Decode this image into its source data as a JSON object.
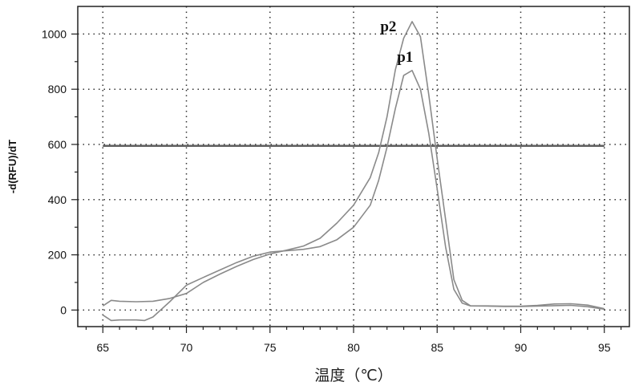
{
  "chart_data": {
    "type": "line",
    "xlabel": "温度（℃）",
    "ylabel": "-d(RFU)/dT",
    "xlim": [
      63.5,
      96.5
    ],
    "ylim": [
      -60,
      1100
    ],
    "xticks": [
      65,
      70,
      75,
      80,
      85,
      90,
      95
    ],
    "yticks": [
      0,
      200,
      400,
      600,
      800,
      1000
    ],
    "grid": true,
    "threshold": 595,
    "series": [
      {
        "name": "p2",
        "color": "#8a8a8a",
        "points": [
          [
            65,
            15
          ],
          [
            65.5,
            35
          ],
          [
            66,
            32
          ],
          [
            67,
            30
          ],
          [
            68,
            32
          ],
          [
            69,
            42
          ],
          [
            70,
            60
          ],
          [
            71,
            100
          ],
          [
            72,
            130
          ],
          [
            73,
            158
          ],
          [
            74,
            183
          ],
          [
            75,
            203
          ],
          [
            76,
            217
          ],
          [
            77,
            232
          ],
          [
            78,
            260
          ],
          [
            79,
            315
          ],
          [
            80,
            380
          ],
          [
            81,
            480
          ],
          [
            81.5,
            570
          ],
          [
            82,
            700
          ],
          [
            82.5,
            870
          ],
          [
            83,
            985
          ],
          [
            83.5,
            1045
          ],
          [
            84,
            990
          ],
          [
            84.5,
            780
          ],
          [
            85,
            550
          ],
          [
            85.5,
            330
          ],
          [
            86,
            110
          ],
          [
            86.5,
            35
          ],
          [
            87,
            15
          ],
          [
            88,
            14
          ],
          [
            89,
            13
          ],
          [
            90,
            13
          ],
          [
            91,
            14
          ],
          [
            92,
            16
          ],
          [
            93,
            17
          ],
          [
            94,
            12
          ],
          [
            95,
            3
          ]
        ]
      },
      {
        "name": "p1",
        "color": "#8a8a8a",
        "points": [
          [
            65,
            -18
          ],
          [
            65.5,
            -38
          ],
          [
            66,
            -36
          ],
          [
            67,
            -36
          ],
          [
            67.5,
            -38
          ],
          [
            68,
            -25
          ],
          [
            69,
            30
          ],
          [
            70,
            90
          ],
          [
            71,
            118
          ],
          [
            72,
            145
          ],
          [
            73,
            172
          ],
          [
            74,
            195
          ],
          [
            75,
            210
          ],
          [
            76,
            215
          ],
          [
            77,
            220
          ],
          [
            78,
            230
          ],
          [
            79,
            255
          ],
          [
            80,
            300
          ],
          [
            81,
            380
          ],
          [
            81.5,
            470
          ],
          [
            82,
            590
          ],
          [
            82.5,
            730
          ],
          [
            83,
            850
          ],
          [
            83.5,
            868
          ],
          [
            84,
            800
          ],
          [
            84.5,
            640
          ],
          [
            85,
            440
          ],
          [
            85.5,
            230
          ],
          [
            86,
            75
          ],
          [
            86.5,
            25
          ],
          [
            87,
            15
          ],
          [
            88,
            15
          ],
          [
            89,
            14
          ],
          [
            90,
            14
          ],
          [
            91,
            17
          ],
          [
            92,
            22
          ],
          [
            93,
            23
          ],
          [
            94,
            18
          ],
          [
            95,
            5
          ]
        ]
      }
    ]
  }
}
